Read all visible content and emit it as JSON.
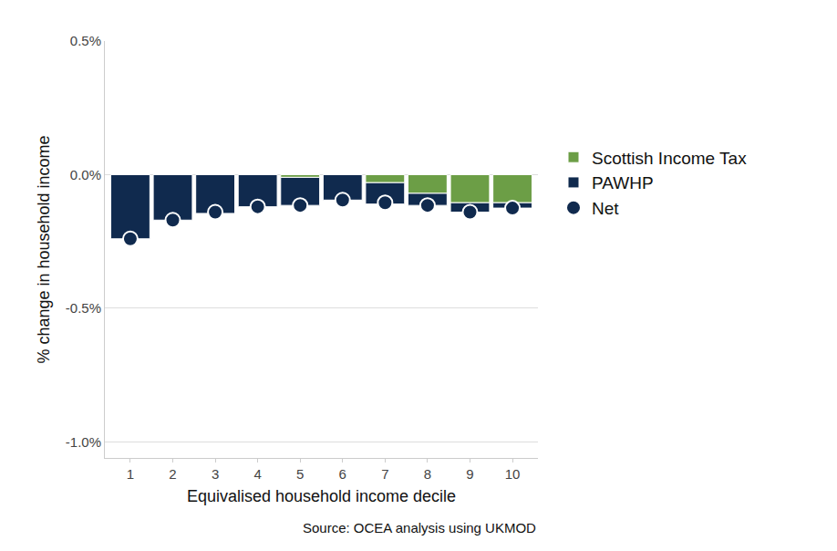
{
  "chart_data": {
    "type": "bar",
    "stacked": true,
    "xlabel": "Equivalised household income decile",
    "ylabel": "% change in household income",
    "source": "Source: OCEA analysis using UKMOD",
    "categories": [
      "1",
      "2",
      "3",
      "4",
      "5",
      "6",
      "7",
      "8",
      "9",
      "10"
    ],
    "series": [
      {
        "name": "Scottish Income Tax",
        "type": "bar",
        "color": "#6c9e46",
        "values": [
          0,
          0,
          0,
          0,
          -0.01,
          0,
          -0.03,
          -0.07,
          -0.105,
          -0.105
        ]
      },
      {
        "name": "PAWHP",
        "type": "bar",
        "color": "#102a4e",
        "values": [
          -0.24,
          -0.17,
          -0.145,
          -0.12,
          -0.105,
          -0.095,
          -0.08,
          -0.045,
          -0.035,
          -0.02
        ]
      },
      {
        "name": "Net",
        "type": "scatter",
        "marker": "circle",
        "color": "#102a4e",
        "values": [
          -0.24,
          -0.17,
          -0.14,
          -0.12,
          -0.115,
          -0.095,
          -0.105,
          -0.115,
          -0.14,
          -0.125
        ]
      }
    ],
    "ylim": [
      -1.06,
      0.5
    ],
    "yticks": [
      {
        "value": 0.5,
        "label": "0.5%"
      },
      {
        "value": 0,
        "label": "0.0%"
      },
      {
        "value": -0.5,
        "label": "-0.5%"
      },
      {
        "value": -1,
        "label": "-1.0%"
      }
    ],
    "grid": true,
    "legend": "right"
  }
}
